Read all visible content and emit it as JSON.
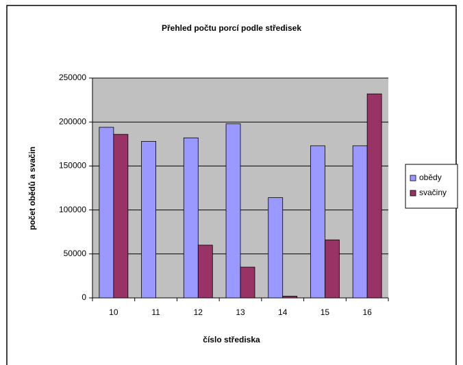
{
  "chart_data": {
    "type": "bar",
    "title": "Přehled počtu porcí podle středisek",
    "x_label": "číslo střediska",
    "y_label": "počet obědů a svačin",
    "categories": [
      "10",
      "11",
      "12",
      "13",
      "14",
      "15",
      "16"
    ],
    "series": [
      {
        "name": "obědy",
        "color": "#9999ff",
        "values": [
          194000,
          178000,
          182000,
          198000,
          114000,
          173000,
          173000
        ]
      },
      {
        "name": "svačiny",
        "color": "#993366",
        "values": [
          186000,
          0,
          60000,
          35000,
          2000,
          66000,
          232000
        ]
      }
    ],
    "ylim": [
      0,
      250000
    ],
    "yticks": [
      0,
      50000,
      100000,
      150000,
      200000,
      250000
    ],
    "grid": true,
    "legend": "right"
  }
}
